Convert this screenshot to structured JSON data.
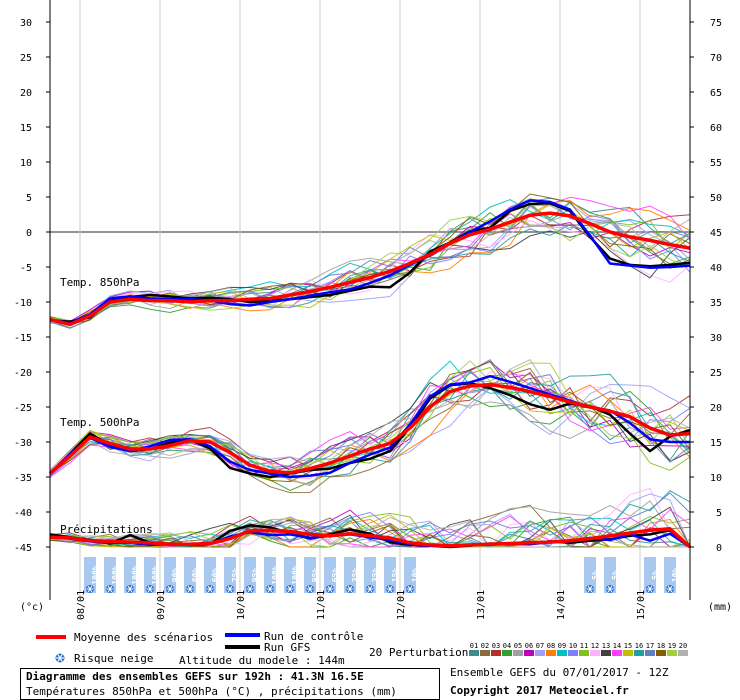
{
  "chart_data": {
    "type": "line",
    "left_axis": {
      "unit": "(°c)",
      "ticks": [
        30,
        25,
        20,
        15,
        10,
        5,
        0,
        -5,
        -10,
        -15,
        -20,
        -25,
        -30,
        -35,
        -40,
        -45
      ],
      "range": [
        -45,
        30
      ]
    },
    "right_axis": {
      "unit": "(mm)",
      "ticks": [
        75,
        70,
        65,
        60,
        55,
        50,
        45,
        40,
        35,
        30,
        25,
        20,
        15,
        10,
        5,
        0
      ],
      "range": [
        0,
        75
      ]
    },
    "x_ticks": [
      {
        "label": "08/01",
        "t": 9
      },
      {
        "label": "09/01",
        "t": 33
      },
      {
        "label": "10/01",
        "t": 57
      },
      {
        "label": "11/01",
        "t": 81
      },
      {
        "label": "12/01",
        "t": 105
      },
      {
        "label": "13/01",
        "t": 129
      },
      {
        "label": "14/01",
        "t": 153
      },
      {
        "label": "15/01",
        "t": 177
      }
    ],
    "x_range_hours": [
      0,
      192
    ],
    "group_labels": {
      "t850": "Temp. 850hPa",
      "t500": "Temp. 500hPa",
      "precip": "Précipitations"
    },
    "t850_mean": [
      [
        0,
        -12.5
      ],
      [
        6,
        -13.2
      ],
      [
        12,
        -12
      ],
      [
        18,
        -10
      ],
      [
        24,
        -9.6
      ],
      [
        30,
        -9.8
      ],
      [
        36,
        -9.8
      ],
      [
        42,
        -10
      ],
      [
        48,
        -9.8
      ],
      [
        54,
        -9.8
      ],
      [
        60,
        -9.6
      ],
      [
        66,
        -9.5
      ],
      [
        72,
        -9.0
      ],
      [
        78,
        -8.5
      ],
      [
        84,
        -7.9
      ],
      [
        90,
        -7.2
      ],
      [
        96,
        -6.5
      ],
      [
        102,
        -5.6
      ],
      [
        108,
        -4.5
      ],
      [
        114,
        -3.2
      ],
      [
        120,
        -1.6
      ],
      [
        126,
        -0.4
      ],
      [
        132,
        0.4
      ],
      [
        138,
        1.4
      ],
      [
        144,
        2.4
      ],
      [
        150,
        2.7
      ],
      [
        156,
        2.3
      ],
      [
        162,
        1.2
      ],
      [
        168,
        0
      ],
      [
        174,
        -0.7
      ],
      [
        180,
        -1.2
      ],
      [
        186,
        -1.8
      ],
      [
        192,
        -2.3
      ]
    ],
    "t850_control": [
      [
        0,
        -12.5
      ],
      [
        6,
        -13
      ],
      [
        12,
        -11.8
      ],
      [
        18,
        -9.5
      ],
      [
        24,
        -9.2
      ],
      [
        30,
        -9.5
      ],
      [
        36,
        -9.6
      ],
      [
        42,
        -9.6
      ],
      [
        48,
        -9.8
      ],
      [
        54,
        -10.3
      ],
      [
        60,
        -10.5
      ],
      [
        66,
        -10
      ],
      [
        72,
        -9.6
      ],
      [
        78,
        -9.1
      ],
      [
        84,
        -8.6
      ],
      [
        90,
        -8.2
      ],
      [
        96,
        -7.3
      ],
      [
        102,
        -6.2
      ],
      [
        108,
        -4.7
      ],
      [
        114,
        -3.3
      ],
      [
        120,
        -1.6
      ],
      [
        126,
        0
      ],
      [
        132,
        1.5
      ],
      [
        138,
        3.2
      ],
      [
        144,
        4.5
      ],
      [
        150,
        4.3
      ],
      [
        156,
        3.2
      ],
      [
        162,
        -0.5
      ],
      [
        168,
        -4.5
      ],
      [
        174,
        -4.8
      ],
      [
        180,
        -5.1
      ],
      [
        186,
        -5.0
      ],
      [
        192,
        -4.8
      ]
    ],
    "t850_gfs": [
      [
        0,
        -12.6
      ],
      [
        6,
        -12.8
      ],
      [
        12,
        -12.2
      ],
      [
        18,
        -9.7
      ],
      [
        24,
        -9.3
      ],
      [
        30,
        -9.0
      ],
      [
        36,
        -9.2
      ],
      [
        42,
        -9.5
      ],
      [
        48,
        -9.4
      ],
      [
        54,
        -9.6
      ],
      [
        60,
        -10.0
      ],
      [
        66,
        -9.8
      ],
      [
        72,
        -9.6
      ],
      [
        78,
        -9.3
      ],
      [
        84,
        -9.0
      ],
      [
        90,
        -8.4
      ],
      [
        96,
        -7.8
      ],
      [
        102,
        -7.9
      ],
      [
        108,
        -5.8
      ],
      [
        114,
        -2.8
      ],
      [
        120,
        -1.5
      ],
      [
        126,
        0.1
      ],
      [
        132,
        0.6
      ],
      [
        138,
        3.0
      ],
      [
        144,
        4.0
      ],
      [
        150,
        4.1
      ],
      [
        156,
        3.0
      ],
      [
        162,
        -0.7
      ],
      [
        168,
        -3.8
      ],
      [
        174,
        -4.7
      ],
      [
        180,
        -4.9
      ],
      [
        186,
        -4.7
      ],
      [
        192,
        -4.4
      ]
    ],
    "t500_mean": [
      [
        0,
        -34.5
      ],
      [
        6,
        -32
      ],
      [
        12,
        -29.3
      ],
      [
        18,
        -30.2
      ],
      [
        24,
        -31
      ],
      [
        30,
        -31
      ],
      [
        36,
        -30.5
      ],
      [
        42,
        -29.8
      ],
      [
        48,
        -30
      ],
      [
        54,
        -31.5
      ],
      [
        60,
        -33.3
      ],
      [
        66,
        -34.2
      ],
      [
        72,
        -34.4
      ],
      [
        78,
        -33.8
      ],
      [
        84,
        -33
      ],
      [
        90,
        -32
      ],
      [
        96,
        -31
      ],
      [
        102,
        -30.2
      ],
      [
        108,
        -28
      ],
      [
        114,
        -25
      ],
      [
        120,
        -22.8
      ],
      [
        126,
        -22
      ],
      [
        132,
        -21.8
      ],
      [
        138,
        -22.2
      ],
      [
        144,
        -22.8
      ],
      [
        150,
        -23.5
      ],
      [
        156,
        -24.3
      ],
      [
        162,
        -25
      ],
      [
        168,
        -25.6
      ],
      [
        174,
        -26.4
      ],
      [
        180,
        -28
      ],
      [
        186,
        -29
      ],
      [
        192,
        -28.8
      ]
    ],
    "t500_control": [
      [
        0,
        -34.5
      ],
      [
        6,
        -31.7
      ],
      [
        12,
        -29.4
      ],
      [
        18,
        -30.7
      ],
      [
        24,
        -31.3
      ],
      [
        30,
        -30.6
      ],
      [
        36,
        -29.7
      ],
      [
        42,
        -29.6
      ],
      [
        48,
        -30.6
      ],
      [
        54,
        -32.8
      ],
      [
        60,
        -34.0
      ],
      [
        66,
        -34.5
      ],
      [
        72,
        -35.0
      ],
      [
        78,
        -34.8
      ],
      [
        84,
        -34.4
      ],
      [
        90,
        -33
      ],
      [
        96,
        -31.8
      ],
      [
        102,
        -30.8
      ],
      [
        108,
        -27.5
      ],
      [
        114,
        -23.5
      ],
      [
        120,
        -21.8
      ],
      [
        126,
        -21.5
      ],
      [
        132,
        -20.6
      ],
      [
        138,
        -21.4
      ],
      [
        144,
        -22.3
      ],
      [
        150,
        -23.2
      ],
      [
        156,
        -24.1
      ],
      [
        162,
        -25.0
      ],
      [
        168,
        -25.5
      ],
      [
        174,
        -27.3
      ],
      [
        180,
        -29.6
      ],
      [
        186,
        -30.0
      ],
      [
        192,
        -30.0
      ]
    ],
    "t500_gfs": [
      [
        0,
        -34.5
      ],
      [
        6,
        -31.7
      ],
      [
        12,
        -28.8
      ],
      [
        18,
        -30.4
      ],
      [
        24,
        -31.3
      ],
      [
        30,
        -31.0
      ],
      [
        36,
        -30.1
      ],
      [
        42,
        -29.7
      ],
      [
        48,
        -30.9
      ],
      [
        54,
        -33.7
      ],
      [
        60,
        -34.5
      ],
      [
        66,
        -35.0
      ],
      [
        72,
        -34.5
      ],
      [
        78,
        -34.0
      ],
      [
        84,
        -33.8
      ],
      [
        90,
        -33.0
      ],
      [
        96,
        -32.4
      ],
      [
        102,
        -31.3
      ],
      [
        108,
        -27.9
      ],
      [
        114,
        -23.8
      ],
      [
        120,
        -21.9
      ],
      [
        126,
        -21.6
      ],
      [
        132,
        -22.3
      ],
      [
        138,
        -23.3
      ],
      [
        144,
        -24.6
      ],
      [
        150,
        -25.4
      ],
      [
        156,
        -24.5
      ],
      [
        162,
        -24.9
      ],
      [
        168,
        -26.1
      ],
      [
        174,
        -28.8
      ],
      [
        180,
        -31.3
      ],
      [
        186,
        -29.2
      ],
      [
        192,
        -28.3
      ]
    ],
    "precip_mean_mm": [
      [
        0,
        1.4
      ],
      [
        6,
        1.3
      ],
      [
        12,
        0.9
      ],
      [
        18,
        0.8
      ],
      [
        24,
        0.7
      ],
      [
        30,
        0.6
      ],
      [
        36,
        0.4
      ],
      [
        42,
        0.4
      ],
      [
        48,
        0.5
      ],
      [
        54,
        1.2
      ],
      [
        60,
        2.3
      ],
      [
        66,
        2.4
      ],
      [
        72,
        2.2
      ],
      [
        78,
        1.8
      ],
      [
        84,
        1.6
      ],
      [
        90,
        1.9
      ],
      [
        96,
        1.6
      ],
      [
        102,
        1.3
      ],
      [
        108,
        0.6
      ],
      [
        114,
        0.3
      ],
      [
        120,
        0.2
      ],
      [
        126,
        0.3
      ],
      [
        132,
        0.4
      ],
      [
        138,
        0.5
      ],
      [
        144,
        0.6
      ],
      [
        150,
        0.7
      ],
      [
        156,
        0.9
      ],
      [
        162,
        1.2
      ],
      [
        168,
        1.6
      ],
      [
        174,
        2.0
      ],
      [
        180,
        2.4
      ],
      [
        186,
        2.6
      ],
      [
        192,
        0
      ]
    ],
    "precip_control_mm": [
      [
        0,
        1.5
      ],
      [
        6,
        1.2
      ],
      [
        12,
        0.8
      ],
      [
        18,
        0.6
      ],
      [
        24,
        0.6
      ],
      [
        30,
        0.3
      ],
      [
        36,
        0.4
      ],
      [
        42,
        0.3
      ],
      [
        48,
        0.4
      ],
      [
        54,
        1.5
      ],
      [
        60,
        2.1
      ],
      [
        66,
        1.7
      ],
      [
        72,
        1.8
      ],
      [
        78,
        1.3
      ],
      [
        84,
        1.6
      ],
      [
        90,
        1.8
      ],
      [
        96,
        1.4
      ],
      [
        102,
        1.0
      ],
      [
        108,
        0.4
      ],
      [
        114,
        0.2
      ],
      [
        120,
        0.1
      ],
      [
        126,
        0.3
      ],
      [
        132,
        0.3
      ],
      [
        138,
        0.5
      ],
      [
        144,
        0.4
      ],
      [
        150,
        0.7
      ],
      [
        156,
        0.8
      ],
      [
        162,
        1.3
      ],
      [
        168,
        1.0
      ],
      [
        174,
        1.8
      ],
      [
        180,
        0.9
      ],
      [
        186,
        1.9
      ],
      [
        192,
        0
      ]
    ],
    "precip_gfs_mm": [
      [
        0,
        1.8
      ],
      [
        6,
        1.4
      ],
      [
        12,
        1.0
      ],
      [
        18,
        0.5
      ],
      [
        24,
        1.7
      ],
      [
        30,
        0.6
      ],
      [
        36,
        0.3
      ],
      [
        42,
        0.3
      ],
      [
        48,
        0.4
      ],
      [
        54,
        2.3
      ],
      [
        60,
        3.1
      ],
      [
        66,
        2.8
      ],
      [
        72,
        2.0
      ],
      [
        78,
        1.2
      ],
      [
        84,
        1.8
      ],
      [
        90,
        2.5
      ],
      [
        96,
        1.9
      ],
      [
        102,
        0.7
      ],
      [
        108,
        0.3
      ],
      [
        114,
        0.2
      ],
      [
        120,
        0.0
      ],
      [
        126,
        0.2
      ],
      [
        132,
        0.5
      ],
      [
        138,
        0.4
      ],
      [
        144,
        0.5
      ],
      [
        150,
        0.8
      ],
      [
        156,
        0.6
      ],
      [
        162,
        0.9
      ],
      [
        168,
        1.1
      ],
      [
        174,
        1.6
      ],
      [
        180,
        1.8
      ],
      [
        186,
        2.4
      ],
      [
        192,
        0
      ]
    ],
    "perturbation_colors": [
      "#3a8c8c",
      "#8c6a3a",
      "#b03030",
      "#30a030",
      "#a0a0a0",
      "#c000c0",
      "#a0a0ff",
      "#ff8000",
      "#00c0c0",
      "#8080ff",
      "#80c020",
      "#ffb0ff",
      "#404040",
      "#ff40ff",
      "#c0c000",
      "#20a0a0",
      "#6080c0",
      "#806000",
      "#9fd040",
      "#b0b0b0"
    ],
    "perturbation_labels": [
      "01",
      "02",
      "03",
      "04",
      "05",
      "06",
      "07",
      "08",
      "09",
      "10",
      "11",
      "12",
      "13",
      "14",
      "15",
      "16",
      "17",
      "18",
      "19",
      "20"
    ],
    "snow_risk": [
      {
        "t": 12,
        "pct": "100%"
      },
      {
        "t": 18,
        "pct": "100%"
      },
      {
        "t": 24,
        "pct": "100%"
      },
      {
        "t": 30,
        "pct": "100%"
      },
      {
        "t": 36,
        "pct": "90%"
      },
      {
        "t": 42,
        "pct": "80%"
      },
      {
        "t": 48,
        "pct": "60%"
      },
      {
        "t": 54,
        "pct": "75%"
      },
      {
        "t": 60,
        "pct": "95%"
      },
      {
        "t": 66,
        "pct": "100%"
      },
      {
        "t": 72,
        "pct": "100%"
      },
      {
        "t": 78,
        "pct": "95%"
      },
      {
        "t": 84,
        "pct": "65%"
      },
      {
        "t": 90,
        "pct": "35%"
      },
      {
        "t": 96,
        "pct": "35%"
      },
      {
        "t": 102,
        "pct": "15%"
      },
      {
        "t": 108,
        "pct": "10%"
      },
      {
        "t": 162,
        "pct": "5%"
      },
      {
        "t": 168,
        "pct": "5%"
      },
      {
        "t": 180,
        "pct": "5%"
      },
      {
        "t": 186,
        "pct": "10%"
      }
    ],
    "colors": {
      "mean": "#ff0000",
      "control": "#0000ff",
      "gfs": "#000000",
      "snow": "#a8c8f0",
      "snow_icon": "#2a70d0"
    }
  },
  "legend": {
    "mean": "Moyenne des scénarios",
    "control": "Run de contrôle",
    "gfs": "Run GFS",
    "perturbations": "20 Perturbations",
    "snow": "Risque neige",
    "altitude": "Altitude du modele : 144m"
  },
  "footer": {
    "title": "Diagramme des ensembles GEFS sur 192h : 41.3N 16.5E",
    "subtitle": "Températures 850hPa et 500hPa (°C) , précipitations (mm)",
    "run": "Ensemble GEFS du 07/01/2017 - 12Z",
    "copyright": "Copyright 2017 Meteociel.fr"
  }
}
